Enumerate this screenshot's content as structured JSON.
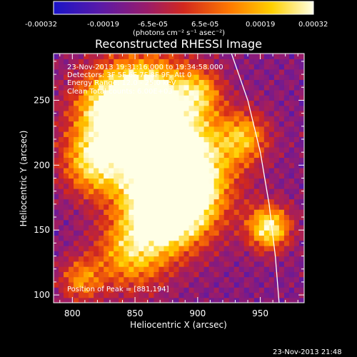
{
  "colorbar": {
    "tick_labels": [
      "-0.00032",
      "-0.00019",
      "-6.5e-05",
      "6.5e-05",
      "0.00019",
      "0.00032"
    ],
    "units_label": "(photons cm⁻² s⁻¹ asec⁻²)",
    "colors": [
      "#1a14c8",
      "#5a1aa8",
      "#9a1c6a",
      "#d2281e",
      "#ff7a00",
      "#ffd000",
      "#ffffe6"
    ]
  },
  "chart_data": {
    "type": "heatmap",
    "title": "Reconstructed RHESSI Image",
    "xlabel": "Heliocentric X (arcsec)",
    "ylabel": "Heliocentric Y (arcsec)",
    "xlim": [
      785,
      985
    ],
    "ylim": [
      94,
      286
    ],
    "x_ticks": [
      800,
      850,
      900,
      950
    ],
    "y_ticks": [
      100,
      150,
      200,
      250
    ],
    "color_range": [
      -0.00032,
      0.00032
    ],
    "peak_position": [
      881,
      194
    ],
    "limb_curve": [
      [
        927,
        286
      ],
      [
        940,
        250
      ],
      [
        950,
        210
      ],
      [
        957,
        170
      ],
      [
        962,
        130
      ],
      [
        965,
        94
      ]
    ],
    "info_lines": [
      "23-Nov-2013 19:31:16.000 to 19:34:58.000",
      "Detectors: 3F 5F 6F 7F 8F 9F, Att 0",
      "Energy Range: 12.0 - 25.0 keV",
      "Clean    Total counts: 6.00E+03"
    ],
    "peak_text": "Position of Peak = [881,194]"
  },
  "footer_timestamp": "23-Nov-2013 21:48"
}
